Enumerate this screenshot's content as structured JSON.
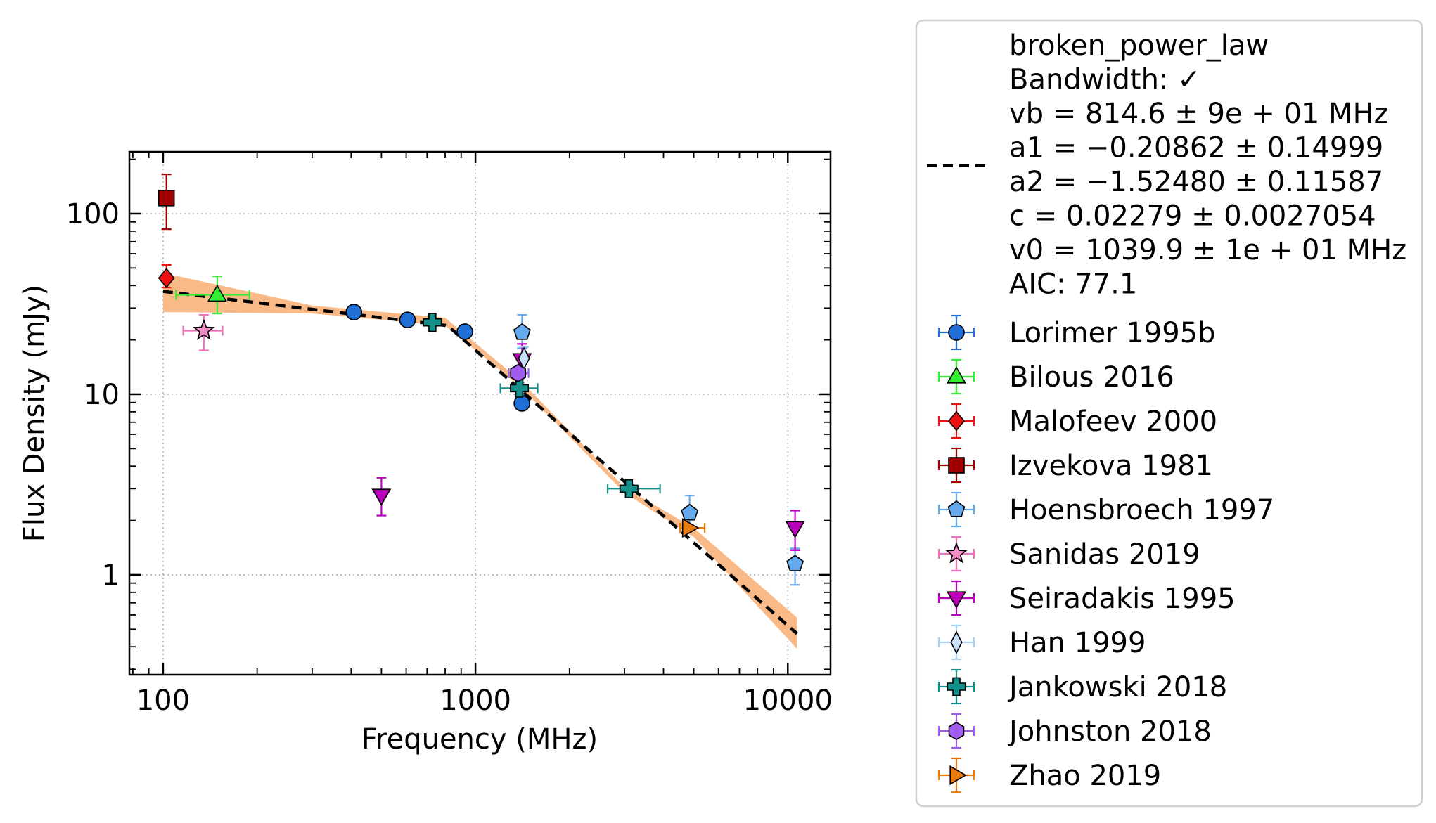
{
  "chart_data": {
    "type": "scatter",
    "xlabel": "Frequency (MHz)",
    "ylabel": "Flux Density (mJy)",
    "xscale": "log",
    "yscale": "log",
    "xlim": [
      78,
      13700
    ],
    "ylim": [
      0.28,
      220
    ],
    "xticks": [
      {
        "value": 100,
        "label": "100"
      },
      {
        "value": 1000,
        "label": "1000"
      },
      {
        "value": 10000,
        "label": "10000"
      }
    ],
    "yticks": [
      {
        "value": 1,
        "label": "1"
      },
      {
        "value": 10,
        "label": "10"
      },
      {
        "value": 100,
        "label": "100"
      }
    ],
    "grid": true,
    "legend_position": "outside-right",
    "fit": {
      "name": "broken_power_law",
      "text_lines": [
        "broken_power_law",
        "Bandwidth: ✓",
        "vb = 814.6 ± 9e + 01 MHz",
        "a1 = −0.20862 ± 0.14999",
        "a2 = −1.52480 ± 0.11587",
        "c = 0.02279 ± 0.0027054",
        "v0 = 1039.9 ± 1e + 01 MHz",
        "AIC: 77.1"
      ],
      "color": "#000000",
      "band_color": "#f9b27a",
      "x_range": [
        100,
        10700
      ],
      "vb": 814.6,
      "a1": -0.20862,
      "a2": -1.5248,
      "c": 0.02279,
      "v0": 1039.9,
      "band_points": [
        {
          "x": 100,
          "lo": 28.5,
          "hi": 47
        },
        {
          "x": 300,
          "lo": 28,
          "hi": 31
        },
        {
          "x": 800,
          "lo": 24,
          "hi": 26.5
        },
        {
          "x": 1400,
          "lo": 10.9,
          "hi": 11.8
        },
        {
          "x": 3000,
          "lo": 2.85,
          "hi": 3.05
        },
        {
          "x": 5000,
          "lo": 1.62,
          "hi": 1.82
        },
        {
          "x": 10700,
          "lo": 0.39,
          "hi": 0.58
        }
      ]
    },
    "series": [
      {
        "name": "Lorimer 1995b",
        "marker": "circle",
        "color": "#1f6fd6",
        "ecolor": "#1f6fd6",
        "points": [
          {
            "x": 408,
            "y": 28.5,
            "yerr": [
              0.6,
              0.6
            ]
          },
          {
            "x": 606,
            "y": 25.8,
            "yerr": [
              0.5,
              0.5
            ]
          },
          {
            "x": 925,
            "y": 22.2,
            "yerr": [
              0.5,
              0.5
            ]
          },
          {
            "x": 1408,
            "y": 8.9,
            "yerr": [
              0.3,
              0.3
            ]
          }
        ]
      },
      {
        "name": "Bilous 2016",
        "marker": "triangle-up",
        "color": "#33ee33",
        "ecolor": "#33ee33",
        "points": [
          {
            "x": 149,
            "y": 35.5,
            "yerr": [
              7.5,
              9.5
            ],
            "xerr": [
              39,
              40
            ]
          }
        ]
      },
      {
        "name": "Malofeev 2000",
        "marker": "diamond",
        "color": "#ee1111",
        "ecolor": "#ee1111",
        "points": [
          {
            "x": 102.5,
            "y": 44,
            "yerr": [
              5,
              8
            ]
          }
        ]
      },
      {
        "name": "Izvekova 1981",
        "marker": "square",
        "color": "#a00000",
        "ecolor": "#a00000",
        "points": [
          {
            "x": 102.5,
            "y": 122,
            "yerr": [
              40,
              43
            ]
          }
        ]
      },
      {
        "name": "Hoensbroech 1997",
        "marker": "pentagon",
        "color": "#66aaee",
        "ecolor": "#66aaee",
        "points": [
          {
            "x": 1410,
            "y": 22,
            "yerr": [
              4,
              5.5
            ]
          },
          {
            "x": 4850,
            "y": 2.2,
            "yerr": [
              0.4,
              0.55
            ]
          },
          {
            "x": 10550,
            "y": 1.15,
            "yerr": [
              0.27,
              0.25
            ]
          }
        ]
      },
      {
        "name": "Sanidas 2019",
        "marker": "star",
        "color": "#f08cc8",
        "ecolor": "#f070b8",
        "points": [
          {
            "x": 135,
            "y": 22.5,
            "yerr": [
              5,
              5
            ],
            "xerr": [
              19,
              20
            ]
          }
        ]
      },
      {
        "name": "Seiradakis 1995",
        "marker": "triangle-down",
        "color": "#bb00bb",
        "ecolor": "#bb00bb",
        "points": [
          {
            "x": 500,
            "y": 2.75,
            "yerr": [
              0.62,
              0.7
            ]
          },
          {
            "x": 10550,
            "y": 1.82,
            "yerr": [
              0.45,
              0.45
            ]
          },
          {
            "x": 1410,
            "y": 15.5,
            "yerr": [
              2.5,
              3.5
            ]
          }
        ]
      },
      {
        "name": "Han 1999",
        "marker": "thin-diamond",
        "color": "#c8e0f8",
        "ecolor": "#a8d0f0",
        "points": [
          {
            "x": 1430,
            "y": 15.8,
            "yerr": [
              2.5,
              2.5
            ]
          }
        ]
      },
      {
        "name": "Jankowski 2018",
        "marker": "plus",
        "color": "#168f8a",
        "ecolor": "#168f8a",
        "points": [
          {
            "x": 728,
            "y": 25,
            "yerr": [
              0.7,
              0.7
            ]
          },
          {
            "x": 1382,
            "y": 10.8,
            "yerr": [
              0.8,
              0.8
            ],
            "xerr": [
              180,
              200
            ]
          },
          {
            "x": 3100,
            "y": 3.0,
            "yerr": [
              0.15,
              0.15
            ],
            "xerr": [
              450,
              800
            ]
          }
        ]
      },
      {
        "name": "Johnston 2018",
        "marker": "hexagon",
        "color": "#a05cf0",
        "ecolor": "#a05cf0",
        "points": [
          {
            "x": 1369,
            "y": 13.1,
            "yerr": [
              0.8,
              0.8
            ],
            "xerr": [
              90,
              110
            ]
          }
        ]
      },
      {
        "name": "Zhao 2019",
        "marker": "triangle-right",
        "color": "#e87a10",
        "ecolor": "#e87a10",
        "points": [
          {
            "x": 4820,
            "y": 1.82,
            "yerr": [
              0.05,
              0.05
            ],
            "xerr": [
              300,
              600
            ]
          }
        ]
      }
    ]
  }
}
